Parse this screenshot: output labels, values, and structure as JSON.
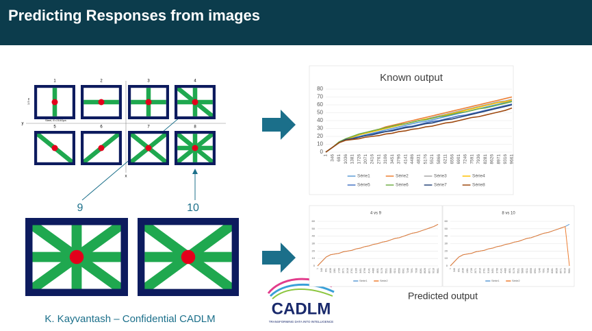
{
  "header": {
    "title": "Predicting Responses from images"
  },
  "diagram": {
    "frames": [
      {
        "label": "1"
      },
      {
        "label": "2"
      },
      {
        "label": "3"
      },
      {
        "label": "4"
      },
      {
        "label": "5"
      },
      {
        "label": "6"
      },
      {
        "label": "7"
      },
      {
        "label": "8"
      }
    ],
    "height_label": "1.5 m",
    "material": "Steel, E=210Gpa",
    "y_axis": "y",
    "x_axis": "x",
    "callouts": [
      "9",
      "10"
    ]
  },
  "chart_data": [
    {
      "type": "line",
      "title": "Known output",
      "categories": [
        "1",
        "346",
        "691",
        "1036",
        "1381",
        "1726",
        "2071",
        "2416",
        "2761",
        "3106",
        "3451",
        "3796",
        "4141",
        "4486",
        "4831",
        "5176",
        "5521",
        "5866",
        "6211",
        "6556",
        "6901",
        "7246",
        "7591",
        "7936",
        "8281",
        "8626",
        "8971",
        "9316",
        "9661"
      ],
      "ylim": [
        0,
        80
      ],
      "yticks": [
        0,
        10,
        20,
        30,
        40,
        50,
        60,
        70,
        80
      ],
      "grid": true,
      "legend": "bottom",
      "series": [
        {
          "name": "Série1",
          "color": "#5b9bd5",
          "values": [
            0,
            6,
            12,
            16,
            18,
            20,
            22,
            24,
            26,
            28,
            30,
            32,
            34,
            36,
            38,
            39,
            41,
            43,
            45,
            47,
            49,
            51,
            53,
            55,
            57,
            59,
            61,
            63,
            65
          ]
        },
        {
          "name": "Série2",
          "color": "#ed7d31",
          "values": [
            0,
            6,
            12,
            16,
            19,
            22,
            24,
            27,
            29,
            32,
            34,
            36,
            38,
            40,
            42,
            44,
            46,
            48,
            50,
            52,
            54,
            56,
            58,
            60,
            62,
            64,
            66,
            68,
            70
          ]
        },
        {
          "name": "Série3",
          "color": "#a5a5a5",
          "values": [
            0,
            6,
            12,
            17,
            19,
            22,
            24,
            26,
            28,
            30,
            32,
            34,
            36,
            38,
            40,
            42,
            44,
            46,
            48,
            50,
            52,
            54,
            56,
            58,
            60,
            62,
            64,
            65,
            67
          ]
        },
        {
          "name": "Série4",
          "color": "#ffc000",
          "values": [
            0,
            6,
            12,
            17,
            19,
            22,
            24,
            26,
            28,
            30,
            32,
            34,
            36,
            38,
            40,
            42,
            43,
            45,
            47,
            49,
            51,
            53,
            55,
            57,
            59,
            61,
            63,
            64,
            66
          ]
        },
        {
          "name": "Série5",
          "color": "#4472c4",
          "values": [
            0,
            6,
            12,
            16,
            17,
            19,
            21,
            23,
            25,
            26,
            28,
            30,
            32,
            33,
            35,
            37,
            39,
            40,
            42,
            44,
            46,
            47,
            49,
            51,
            53,
            55,
            57,
            59,
            61
          ]
        },
        {
          "name": "Série6",
          "color": "#70ad47",
          "values": [
            0,
            6,
            13,
            17,
            20,
            23,
            25,
            27,
            29,
            31,
            33,
            35,
            36,
            38,
            40,
            41,
            43,
            45,
            46,
            48,
            50,
            51,
            53,
            55,
            56,
            58,
            60,
            62,
            64
          ]
        },
        {
          "name": "Série7",
          "color": "#264478",
          "values": [
            0,
            6,
            12,
            16,
            17,
            19,
            21,
            22,
            24,
            26,
            27,
            29,
            31,
            32,
            34,
            36,
            37,
            39,
            41,
            42,
            44,
            46,
            48,
            50,
            52,
            54,
            56,
            58,
            60
          ]
        },
        {
          "name": "Série8",
          "color": "#9e480e",
          "values": [
            0,
            6,
            12,
            15,
            16,
            17,
            19,
            20,
            21,
            23,
            24,
            26,
            27,
            29,
            30,
            32,
            33,
            35,
            37,
            38,
            40,
            42,
            44,
            45,
            47,
            49,
            51,
            53,
            56
          ]
        }
      ]
    },
    {
      "type": "line",
      "title": "4 vs 9",
      "categories": [
        "1",
        "346",
        "691",
        "1036",
        "1381",
        "1726",
        "2071",
        "2416",
        "2761",
        "3106",
        "3451",
        "3796",
        "4141",
        "4486",
        "4831",
        "5176",
        "5521",
        "5866",
        "6211",
        "6556",
        "6901",
        "7246",
        "7591",
        "7936",
        "8281",
        "8626",
        "8971",
        "9316",
        "9661"
      ],
      "ylim": [
        0,
        60
      ],
      "yticks": [
        0,
        10,
        20,
        30,
        40,
        50,
        60
      ],
      "grid": true,
      "legend": "bottom",
      "series": [
        {
          "name": "Série1",
          "color": "#5b9bd5",
          "values": [
            0,
            6,
            12,
            15,
            16,
            17,
            19,
            20,
            21,
            23,
            24,
            26,
            27,
            29,
            30,
            32,
            33,
            35,
            37,
            38,
            40,
            42,
            44,
            45,
            47,
            49,
            51,
            53,
            56
          ]
        },
        {
          "name": "Série2",
          "color": "#ed7d31",
          "values": [
            0,
            6,
            12,
            15,
            16,
            17,
            19,
            20,
            21,
            23,
            24,
            26,
            27,
            29,
            30,
            32,
            33,
            35,
            37,
            38,
            40,
            42,
            44,
            45,
            47,
            49,
            51,
            53,
            56
          ]
        }
      ]
    },
    {
      "type": "line",
      "title": "8 vs 10",
      "categories": [
        "1",
        "346",
        "691",
        "1036",
        "1381",
        "1726",
        "2071",
        "2416",
        "2761",
        "3106",
        "3451",
        "3796",
        "4141",
        "4486",
        "4831",
        "5176",
        "5521",
        "5866",
        "6211",
        "6556",
        "6901",
        "7246",
        "7591",
        "7936",
        "8281",
        "8626",
        "8971",
        "9316",
        "9661"
      ],
      "ylim": [
        0,
        60
      ],
      "yticks": [
        0,
        10,
        20,
        30,
        40,
        50,
        60
      ],
      "grid": true,
      "legend": "bottom",
      "series": [
        {
          "name": "Série1",
          "color": "#5b9bd5",
          "values": [
            0,
            6,
            12,
            15,
            16,
            17,
            19,
            20,
            21,
            23,
            24,
            26,
            27,
            29,
            30,
            32,
            33,
            35,
            37,
            38,
            40,
            42,
            44,
            45,
            47,
            49,
            51,
            53,
            56
          ]
        },
        {
          "name": "Série2",
          "color": "#ed7d31",
          "values": [
            0,
            6,
            12,
            15,
            16,
            17,
            19,
            20,
            21,
            23,
            24,
            26,
            27,
            29,
            30,
            32,
            33,
            35,
            37,
            38,
            40,
            42,
            44,
            45,
            47,
            49,
            51,
            53,
            0
          ]
        }
      ]
    }
  ],
  "predicted_caption": "Predicted output",
  "footer": "K. Kayvantash – Confidential CADLM",
  "logo": {
    "name": "CADLM",
    "tagline": "TRANSFORMING DATA INTO INTELLIGENCE"
  }
}
